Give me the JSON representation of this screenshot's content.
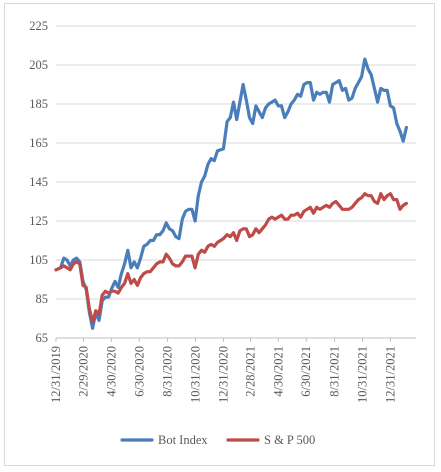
{
  "chart_data": {
    "type": "line",
    "title": "",
    "xlabel": "",
    "ylabel": "",
    "ylim": [
      65,
      225
    ],
    "yticks": [
      65,
      85,
      105,
      125,
      145,
      165,
      185,
      205,
      225
    ],
    "ytick_labels": [
      "65",
      "85",
      "105",
      "125",
      "145",
      "165",
      "185",
      "205",
      "225"
    ],
    "xticks": [
      "12/31/2019",
      "2/29/2020",
      "4/30/2020",
      "6/30/2020",
      "8/31/2020",
      "10/31/2020",
      "12/31/2020",
      "2/28/2021",
      "4/30/2021",
      "6/30/2021",
      "8/31/2021",
      "10/31/2021",
      "12/31/2021"
    ],
    "xtick_labels": [
      "12/31/2019",
      "2/29/2020",
      "4/30/2020",
      "6/30/2020",
      "8/31/2020",
      "10/31/2020",
      "12/31/2020",
      "2/28/2021",
      "4/30/2021",
      "6/30/2021",
      "8/31/2021",
      "10/31/2021",
      "12/31/2021"
    ],
    "xlim": [
      "2019-12-31",
      "2022-02-25"
    ],
    "grid": "horizontal",
    "legend_position": "bottom",
    "series": [
      {
        "name": "Bot Index",
        "color": "#4a7ebb",
        "points": [
          [
            "2019-12-31",
            100
          ],
          [
            "2020-01-10",
            101
          ],
          [
            "2020-01-17",
            106
          ],
          [
            "2020-01-24",
            105
          ],
          [
            "2020-01-31",
            102
          ],
          [
            "2020-02-07",
            105
          ],
          [
            "2020-02-14",
            106
          ],
          [
            "2020-02-21",
            104
          ],
          [
            "2020-02-28",
            94
          ],
          [
            "2020-03-06",
            90
          ],
          [
            "2020-03-13",
            78
          ],
          [
            "2020-03-20",
            70
          ],
          [
            "2020-03-27",
            78
          ],
          [
            "2020-04-03",
            74
          ],
          [
            "2020-04-10",
            84
          ],
          [
            "2020-04-17",
            86
          ],
          [
            "2020-04-24",
            86
          ],
          [
            "2020-04-30",
            90
          ],
          [
            "2020-05-08",
            94
          ],
          [
            "2020-05-15",
            91
          ],
          [
            "2020-05-22",
            98
          ],
          [
            "2020-05-29",
            103
          ],
          [
            "2020-06-05",
            110
          ],
          [
            "2020-06-12",
            101
          ],
          [
            "2020-06-19",
            104
          ],
          [
            "2020-06-26",
            101
          ],
          [
            "2020-07-03",
            106
          ],
          [
            "2020-07-10",
            112
          ],
          [
            "2020-07-17",
            113
          ],
          [
            "2020-07-24",
            115
          ],
          [
            "2020-07-31",
            115
          ],
          [
            "2020-08-07",
            118
          ],
          [
            "2020-08-14",
            118
          ],
          [
            "2020-08-21",
            120
          ],
          [
            "2020-08-28",
            124
          ],
          [
            "2020-09-04",
            121
          ],
          [
            "2020-09-11",
            120
          ],
          [
            "2020-09-18",
            117
          ],
          [
            "2020-09-25",
            116
          ],
          [
            "2020-10-02",
            126
          ],
          [
            "2020-10-09",
            130
          ],
          [
            "2020-10-16",
            131
          ],
          [
            "2020-10-23",
            131
          ],
          [
            "2020-10-30",
            125
          ],
          [
            "2020-11-06",
            138
          ],
          [
            "2020-11-13",
            145
          ],
          [
            "2020-11-20",
            148
          ],
          [
            "2020-11-27",
            154
          ],
          [
            "2020-12-04",
            157
          ],
          [
            "2020-12-11",
            156
          ],
          [
            "2020-12-18",
            161
          ],
          [
            "2020-12-31",
            162
          ],
          [
            "2021-01-08",
            176
          ],
          [
            "2021-01-15",
            178
          ],
          [
            "2021-01-22",
            186
          ],
          [
            "2021-01-29",
            177
          ],
          [
            "2021-02-05",
            186
          ],
          [
            "2021-02-12",
            195
          ],
          [
            "2021-02-19",
            187
          ],
          [
            "2021-02-26",
            178
          ],
          [
            "2021-03-05",
            175
          ],
          [
            "2021-03-12",
            184
          ],
          [
            "2021-03-19",
            181
          ],
          [
            "2021-03-26",
            178
          ],
          [
            "2021-04-02",
            183
          ],
          [
            "2021-04-09",
            185
          ],
          [
            "2021-04-16",
            186
          ],
          [
            "2021-04-23",
            187
          ],
          [
            "2021-04-30",
            184
          ],
          [
            "2021-05-07",
            184
          ],
          [
            "2021-05-14",
            178
          ],
          [
            "2021-05-21",
            181
          ],
          [
            "2021-05-28",
            185
          ],
          [
            "2021-06-04",
            187
          ],
          [
            "2021-06-11",
            190
          ],
          [
            "2021-06-18",
            189
          ],
          [
            "2021-06-25",
            195
          ],
          [
            "2021-07-02",
            196
          ],
          [
            "2021-07-09",
            196
          ],
          [
            "2021-07-16",
            187
          ],
          [
            "2021-07-23",
            191
          ],
          [
            "2021-07-30",
            190
          ],
          [
            "2021-08-06",
            191
          ],
          [
            "2021-08-13",
            191
          ],
          [
            "2021-08-20",
            186
          ],
          [
            "2021-08-27",
            195
          ],
          [
            "2021-09-03",
            196
          ],
          [
            "2021-09-10",
            197
          ],
          [
            "2021-09-17",
            192
          ],
          [
            "2021-09-24",
            193
          ],
          [
            "2021-10-01",
            187
          ],
          [
            "2021-10-08",
            188
          ],
          [
            "2021-10-15",
            193
          ],
          [
            "2021-10-22",
            196
          ],
          [
            "2021-10-29",
            199
          ],
          [
            "2021-11-05",
            208
          ],
          [
            "2021-11-12",
            203
          ],
          [
            "2021-11-19",
            200
          ],
          [
            "2021-11-26",
            193
          ],
          [
            "2021-12-03",
            186
          ],
          [
            "2021-12-10",
            193
          ],
          [
            "2021-12-17",
            192
          ],
          [
            "2021-12-24",
            192
          ],
          [
            "2021-12-31",
            184
          ],
          [
            "2022-01-07",
            183
          ],
          [
            "2022-01-14",
            175
          ],
          [
            "2022-01-21",
            171
          ],
          [
            "2022-01-28",
            166
          ],
          [
            "2022-02-04",
            173
          ]
        ]
      },
      {
        "name": "S & P 500",
        "color": "#be4b48",
        "points": [
          [
            "2019-12-31",
            100
          ],
          [
            "2020-01-10",
            101
          ],
          [
            "2020-01-17",
            102
          ],
          [
            "2020-01-24",
            101
          ],
          [
            "2020-01-31",
            100
          ],
          [
            "2020-02-07",
            103
          ],
          [
            "2020-02-14",
            104
          ],
          [
            "2020-02-21",
            103
          ],
          [
            "2020-02-28",
            92
          ],
          [
            "2020-03-06",
            91
          ],
          [
            "2020-03-13",
            80
          ],
          [
            "2020-03-20",
            73
          ],
          [
            "2020-03-27",
            79
          ],
          [
            "2020-04-03",
            77
          ],
          [
            "2020-04-10",
            87
          ],
          [
            "2020-04-17",
            89
          ],
          [
            "2020-04-24",
            88
          ],
          [
            "2020-04-30",
            89
          ],
          [
            "2020-05-08",
            89
          ],
          [
            "2020-05-15",
            88
          ],
          [
            "2020-05-22",
            91
          ],
          [
            "2020-05-29",
            93
          ],
          [
            "2020-06-05",
            98
          ],
          [
            "2020-06-12",
            93
          ],
          [
            "2020-06-19",
            95
          ],
          [
            "2020-06-26",
            92
          ],
          [
            "2020-07-03",
            96
          ],
          [
            "2020-07-10",
            98
          ],
          [
            "2020-07-17",
            99
          ],
          [
            "2020-07-24",
            99
          ],
          [
            "2020-07-31",
            101
          ],
          [
            "2020-08-07",
            103
          ],
          [
            "2020-08-14",
            104
          ],
          [
            "2020-08-21",
            104
          ],
          [
            "2020-08-28",
            108
          ],
          [
            "2020-09-04",
            106
          ],
          [
            "2020-09-11",
            103
          ],
          [
            "2020-09-18",
            102
          ],
          [
            "2020-09-25",
            102
          ],
          [
            "2020-10-02",
            104
          ],
          [
            "2020-10-09",
            107
          ],
          [
            "2020-10-16",
            107
          ],
          [
            "2020-10-23",
            107
          ],
          [
            "2020-10-30",
            101
          ],
          [
            "2020-11-06",
            108
          ],
          [
            "2020-11-13",
            110
          ],
          [
            "2020-11-20",
            109
          ],
          [
            "2020-11-27",
            112
          ],
          [
            "2020-12-04",
            113
          ],
          [
            "2020-12-11",
            112
          ],
          [
            "2020-12-18",
            114
          ],
          [
            "2020-12-31",
            116
          ],
          [
            "2021-01-08",
            118
          ],
          [
            "2021-01-15",
            117
          ],
          [
            "2021-01-22",
            119
          ],
          [
            "2021-01-29",
            115
          ],
          [
            "2021-02-05",
            120
          ],
          [
            "2021-02-12",
            121
          ],
          [
            "2021-02-19",
            121
          ],
          [
            "2021-02-26",
            117
          ],
          [
            "2021-03-05",
            118
          ],
          [
            "2021-03-12",
            121
          ],
          [
            "2021-03-19",
            119
          ],
          [
            "2021-03-26",
            121
          ],
          [
            "2021-04-02",
            123
          ],
          [
            "2021-04-09",
            126
          ],
          [
            "2021-04-16",
            127
          ],
          [
            "2021-04-23",
            126
          ],
          [
            "2021-04-30",
            127
          ],
          [
            "2021-05-07",
            128
          ],
          [
            "2021-05-14",
            126
          ],
          [
            "2021-05-21",
            126
          ],
          [
            "2021-05-28",
            128
          ],
          [
            "2021-06-04",
            128
          ],
          [
            "2021-06-11",
            129
          ],
          [
            "2021-06-18",
            127
          ],
          [
            "2021-06-25",
            130
          ],
          [
            "2021-07-02",
            131
          ],
          [
            "2021-07-09",
            132
          ],
          [
            "2021-07-16",
            129
          ],
          [
            "2021-07-23",
            132
          ],
          [
            "2021-07-30",
            131
          ],
          [
            "2021-08-06",
            132
          ],
          [
            "2021-08-13",
            133
          ],
          [
            "2021-08-20",
            132
          ],
          [
            "2021-08-27",
            134
          ],
          [
            "2021-09-03",
            135
          ],
          [
            "2021-09-10",
            133
          ],
          [
            "2021-09-17",
            131
          ],
          [
            "2021-09-24",
            131
          ],
          [
            "2021-10-01",
            131
          ],
          [
            "2021-10-08",
            132
          ],
          [
            "2021-10-15",
            134
          ],
          [
            "2021-10-22",
            136
          ],
          [
            "2021-10-29",
            137
          ],
          [
            "2021-11-05",
            139
          ],
          [
            "2021-11-12",
            138
          ],
          [
            "2021-11-19",
            138
          ],
          [
            "2021-11-26",
            135
          ],
          [
            "2021-12-03",
            134
          ],
          [
            "2021-12-10",
            139
          ],
          [
            "2021-12-17",
            136
          ],
          [
            "2021-12-24",
            138
          ],
          [
            "2021-12-31",
            139
          ],
          [
            "2022-01-07",
            136
          ],
          [
            "2022-01-14",
            136
          ],
          [
            "2022-01-21",
            131
          ],
          [
            "2022-01-28",
            133
          ],
          [
            "2022-02-04",
            134
          ]
        ]
      }
    ]
  }
}
